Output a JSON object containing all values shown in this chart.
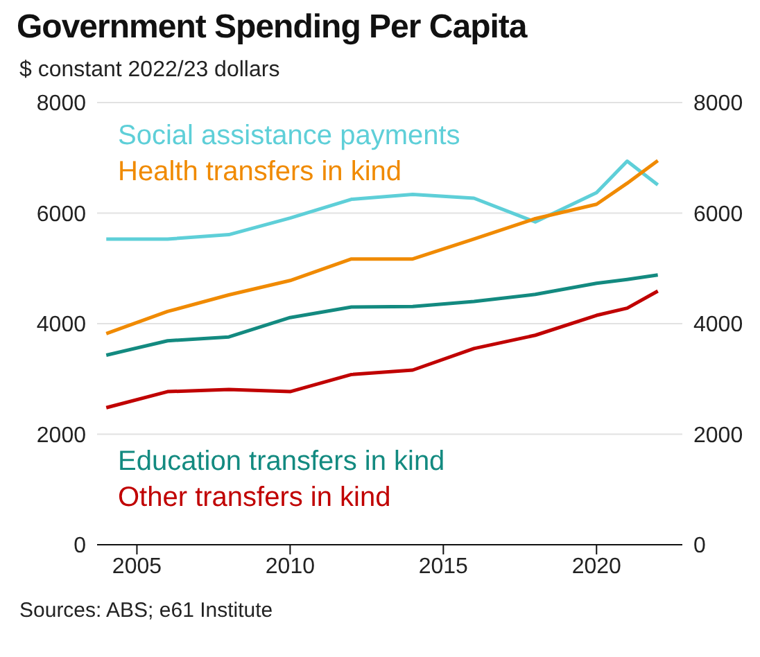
{
  "chart_data": {
    "type": "line",
    "title": "Government Spending Per Capita",
    "subtitle": "$ constant 2022/23 dollars",
    "x": [
      2004,
      2006,
      2008,
      2010,
      2012,
      2014,
      2016,
      2018,
      2020,
      2021,
      2022
    ],
    "series": [
      {
        "name": "Social assistance payments",
        "color": "#5ecfd8",
        "values": [
          5530,
          5530,
          5610,
          5910,
          6250,
          6340,
          6270,
          5840,
          6370,
          6940,
          6510
        ]
      },
      {
        "name": "Health transfers in kind",
        "color": "#f08a00",
        "values": [
          3820,
          4220,
          4520,
          4780,
          5170,
          5170,
          5530,
          5900,
          6160,
          6540,
          6950
        ]
      },
      {
        "name": "Education transfers in kind",
        "color": "#138a80",
        "values": [
          3430,
          3690,
          3760,
          4110,
          4300,
          4310,
          4400,
          4530,
          4730,
          4800,
          4880
        ]
      },
      {
        "name": "Other transfers in kind",
        "color": "#c00000",
        "values": [
          2480,
          2770,
          2810,
          2770,
          3080,
          3160,
          3550,
          3790,
          4150,
          4280,
          4590
        ]
      }
    ],
    "xlim": [
      2003.7,
      2022.8
    ],
    "xticks": [
      2005,
      2010,
      2015,
      2020
    ],
    "ylim": [
      0,
      8000
    ],
    "yticks": [
      0,
      2000,
      4000,
      6000,
      8000
    ],
    "y2lim": [
      0,
      8000
    ],
    "y2ticks": [
      0,
      2000,
      4000,
      6000,
      8000
    ],
    "grid": "y",
    "legend": "left",
    "marker": "none",
    "line_style": "solid",
    "annotations": [
      "Sources: ABS; e61 Institute"
    ]
  }
}
